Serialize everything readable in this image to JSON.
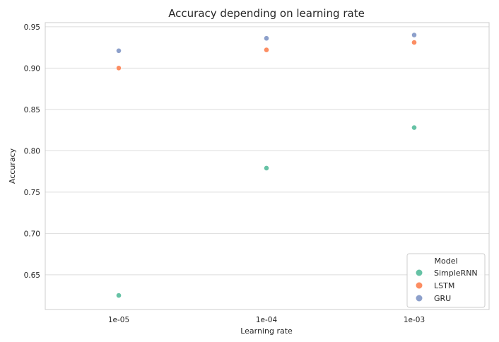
{
  "chart_data": {
    "type": "scatter",
    "title": "Accuracy depending on learning rate",
    "xlabel": "Learning rate",
    "ylabel": "Accuracy",
    "categories": [
      "1e-05",
      "1e-04",
      "1e-03"
    ],
    "yticks": [
      "0.65",
      "0.70",
      "0.75",
      "0.80",
      "0.85",
      "0.90",
      "0.95"
    ],
    "ylim": [
      0.608,
      0.955
    ],
    "grid": true,
    "legend": {
      "title": "Model",
      "position": "lower-right"
    },
    "series": [
      {
        "name": "SimpleRNN",
        "color": "#66c2a5",
        "values": [
          0.625,
          0.779,
          0.828
        ]
      },
      {
        "name": "LSTM",
        "color": "#fc8d62",
        "values": [
          0.9,
          0.922,
          0.931
        ]
      },
      {
        "name": "GRU",
        "color": "#8da0cb",
        "values": [
          0.921,
          0.936,
          0.94
        ]
      }
    ]
  }
}
